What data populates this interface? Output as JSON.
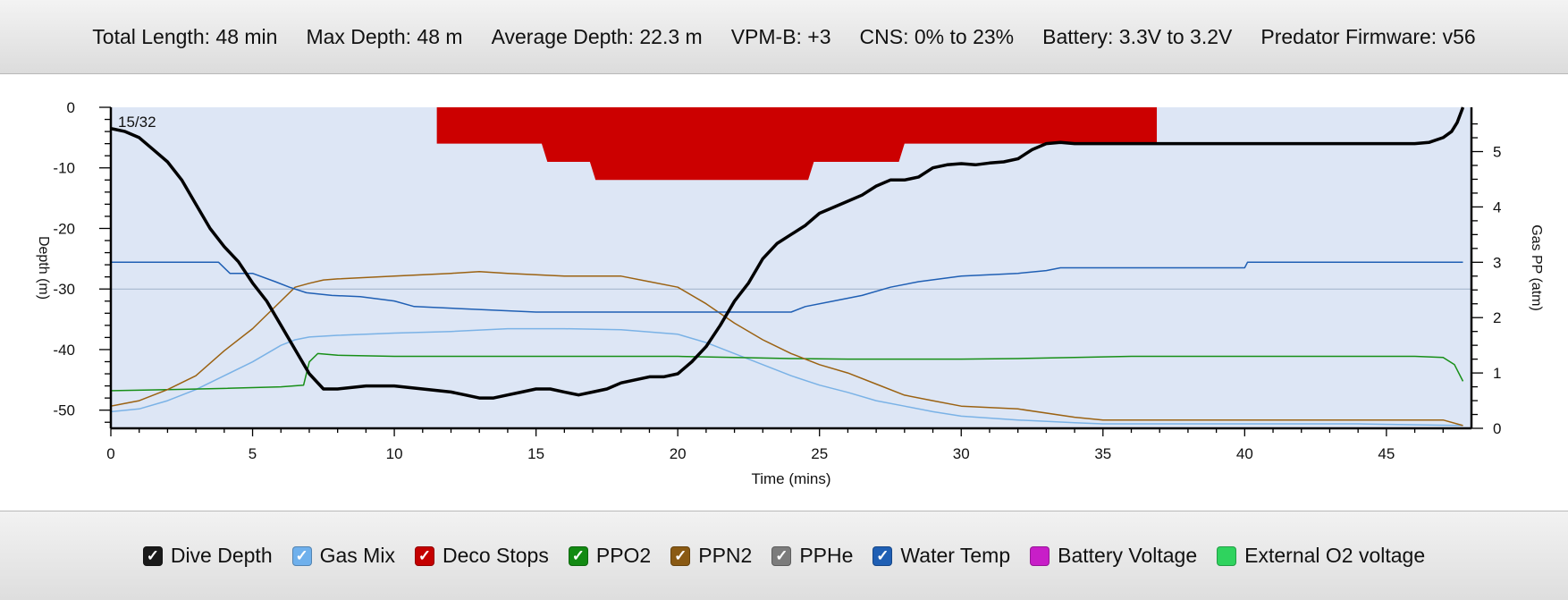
{
  "header": {
    "stats": [
      "Total Length: 48 min",
      "Max Depth: 48 m",
      "Average Depth: 22.3 m",
      "VPM-B: +3",
      "CNS: 0% to 23%",
      "Battery: 3.3V to 3.2V",
      "Predator Firmware: v56"
    ]
  },
  "chart_data": {
    "type": "line",
    "xlabel": "Time (mins)",
    "ylabel_left": "Depth (m)",
    "ylabel_right": "Gas PP (atm)",
    "xlim": [
      0,
      48
    ],
    "ylim_left": [
      -53,
      0
    ],
    "ylim_right": [
      0,
      5.8
    ],
    "x_ticks": [
      "0",
      "5",
      "10",
      "15",
      "20",
      "25",
      "30",
      "35",
      "40",
      "45"
    ],
    "y_ticks_left": [
      "0",
      "-10",
      "-20",
      "-30",
      "-40",
      "-50"
    ],
    "y_ticks_right": [
      "0",
      "1",
      "2",
      "3",
      "4",
      "5"
    ],
    "annotation": "15/32",
    "reference_line_depth": -30,
    "background_color": "#dde6f5",
    "series": [
      {
        "name": "Dive Depth",
        "axis": "left",
        "color": "#000000",
        "width": 3.5,
        "x": [
          0,
          0.5,
          1,
          1.5,
          2,
          2.5,
          3,
          3.5,
          4,
          4.5,
          5,
          5.5,
          6,
          6.5,
          7,
          7.5,
          8,
          9,
          10,
          11,
          12,
          12.5,
          13,
          13.5,
          14,
          14.5,
          15,
          15.5,
          16,
          16.5,
          17,
          17.5,
          18,
          18.5,
          19,
          19.5,
          20,
          20.5,
          21,
          21.5,
          22,
          22.5,
          23,
          23.5,
          24,
          24.5,
          25,
          25.5,
          26,
          26.5,
          27,
          27.5,
          28,
          28.5,
          29,
          29.5,
          30,
          30.5,
          31,
          31.5,
          32,
          32.5,
          33,
          33.5,
          34,
          35,
          36,
          37,
          38,
          39,
          40,
          41,
          42,
          43,
          44,
          45,
          46,
          46.5,
          47,
          47.3,
          47.5,
          47.7
        ],
        "y": [
          -3.5,
          -4,
          -5,
          -7,
          -9,
          -12,
          -16,
          -20,
          -23,
          -25.5,
          -29,
          -32,
          -36,
          -40,
          -44,
          -46.5,
          -46.5,
          -46,
          -46,
          -46.5,
          -47,
          -47.5,
          -48,
          -48,
          -47.5,
          -47,
          -46.5,
          -46.5,
          -47,
          -47.5,
          -47,
          -46.5,
          -45.5,
          -45,
          -44.5,
          -44.5,
          -44,
          -42,
          -39.5,
          -36,
          -32,
          -29,
          -25,
          -22.5,
          -21,
          -19.5,
          -17.5,
          -16.5,
          -15.5,
          -14.5,
          -13,
          -12,
          -12,
          -11.5,
          -10,
          -9.5,
          -9.3,
          -9.5,
          -9.2,
          -9,
          -8.5,
          -7,
          -6,
          -5.8,
          -6,
          -6,
          -6,
          -6,
          -6,
          -6,
          -6,
          -6,
          -6,
          -6,
          -6,
          -6,
          -6,
          -5.8,
          -5,
          -4,
          -2.5,
          0
        ]
      },
      {
        "name": "Gas Mix",
        "axis": "right",
        "color": "#7ab2e6",
        "width": 1.5,
        "x": [
          0,
          1,
          2,
          3,
          4,
          5,
          6,
          6.5,
          7,
          8,
          10,
          12,
          14,
          16,
          18,
          20,
          21,
          22,
          23,
          24,
          25,
          26,
          27,
          28,
          29,
          30,
          32,
          34,
          35,
          36,
          40,
          44,
          47.7
        ],
        "y": [
          0.3,
          0.35,
          0.5,
          0.7,
          0.95,
          1.2,
          1.5,
          1.6,
          1.65,
          1.68,
          1.72,
          1.75,
          1.8,
          1.8,
          1.78,
          1.7,
          1.55,
          1.35,
          1.15,
          0.95,
          0.78,
          0.65,
          0.5,
          0.4,
          0.3,
          0.22,
          0.15,
          0.1,
          0.08,
          0.08,
          0.08,
          0.08,
          0.05
        ]
      },
      {
        "name": "PPO2",
        "axis": "right",
        "color": "#178f17",
        "width": 1.5,
        "x": [
          0,
          2,
          4,
          6,
          6.8,
          7,
          7.3,
          8,
          10,
          12,
          14,
          16,
          18,
          20,
          22,
          24,
          26,
          28,
          30,
          32,
          34,
          36,
          38,
          40,
          42,
          44,
          46,
          47,
          47.4,
          47.7
        ],
        "y": [
          0.68,
          0.7,
          0.72,
          0.75,
          0.78,
          1.2,
          1.35,
          1.32,
          1.3,
          1.3,
          1.3,
          1.3,
          1.3,
          1.3,
          1.28,
          1.26,
          1.25,
          1.25,
          1.25,
          1.26,
          1.28,
          1.3,
          1.3,
          1.3,
          1.3,
          1.3,
          1.3,
          1.28,
          1.15,
          0.85
        ]
      },
      {
        "name": "PPN2",
        "axis": "right",
        "color": "#9b6212",
        "width": 1.5,
        "x": [
          0,
          0.5,
          1,
          2,
          3,
          4,
          5,
          6,
          6.5,
          7,
          7.5,
          8,
          10,
          12,
          13,
          14,
          16,
          18,
          19,
          20,
          21,
          22,
          23,
          24,
          25,
          26,
          27,
          28,
          29,
          30,
          32,
          34,
          35,
          36,
          40,
          44,
          47,
          47.7
        ],
        "y": [
          0.4,
          0.45,
          0.5,
          0.7,
          0.95,
          1.4,
          1.8,
          2.3,
          2.55,
          2.62,
          2.68,
          2.7,
          2.75,
          2.8,
          2.83,
          2.8,
          2.75,
          2.75,
          2.65,
          2.55,
          2.25,
          1.9,
          1.6,
          1.35,
          1.15,
          1.0,
          0.8,
          0.6,
          0.5,
          0.4,
          0.35,
          0.2,
          0.15,
          0.15,
          0.15,
          0.15,
          0.15,
          0.05
        ]
      },
      {
        "name": "Water Temp",
        "axis": "right",
        "color": "#1f5fb4",
        "width": 1.5,
        "x": [
          0,
          3.8,
          4.2,
          5,
          5.8,
          6.3,
          6.9,
          7.8,
          8.8,
          10,
          10.7,
          15,
          24,
          24.5,
          25.5,
          26.5,
          27.5,
          28.5,
          30,
          32,
          33,
          33.5,
          40,
          40.1,
          47.7
        ],
        "y": [
          3,
          3,
          2.8,
          2.8,
          2.65,
          2.55,
          2.45,
          2.4,
          2.38,
          2.3,
          2.2,
          2.1,
          2.1,
          2.2,
          2.3,
          2.4,
          2.55,
          2.65,
          2.75,
          2.8,
          2.85,
          2.9,
          2.9,
          3.0,
          3.0
        ]
      }
    ],
    "deco_stops": {
      "name": "Deco Stops",
      "color": "#cc0000",
      "x": [
        11.5,
        15.2,
        15.4,
        16.9,
        17.1,
        17.3,
        24.6,
        24.8,
        27.8,
        28,
        36.9
      ],
      "depth": [
        -6,
        -6,
        -9,
        -9,
        -12,
        -12,
        -12,
        -9,
        -9,
        -6,
        -6
      ]
    }
  },
  "legend": [
    {
      "label": "Dive Depth",
      "color": "#1a1a1a",
      "checked": true
    },
    {
      "label": "Gas Mix",
      "color": "#6fb0ec",
      "checked": true
    },
    {
      "label": "Deco Stops",
      "color": "#c40000",
      "checked": true
    },
    {
      "label": "PPO2",
      "color": "#138a13",
      "checked": true
    },
    {
      "label": "PPN2",
      "color": "#8a5a14",
      "checked": true
    },
    {
      "label": "PPHe",
      "color": "#7c7c7c",
      "checked": true
    },
    {
      "label": "Water Temp",
      "color": "#1f5fb4",
      "checked": true
    },
    {
      "label": "Battery Voltage",
      "color": "#c81ec8",
      "checked": false
    },
    {
      "label": "External O2 voltage",
      "color": "#2fd35e",
      "checked": false
    }
  ]
}
